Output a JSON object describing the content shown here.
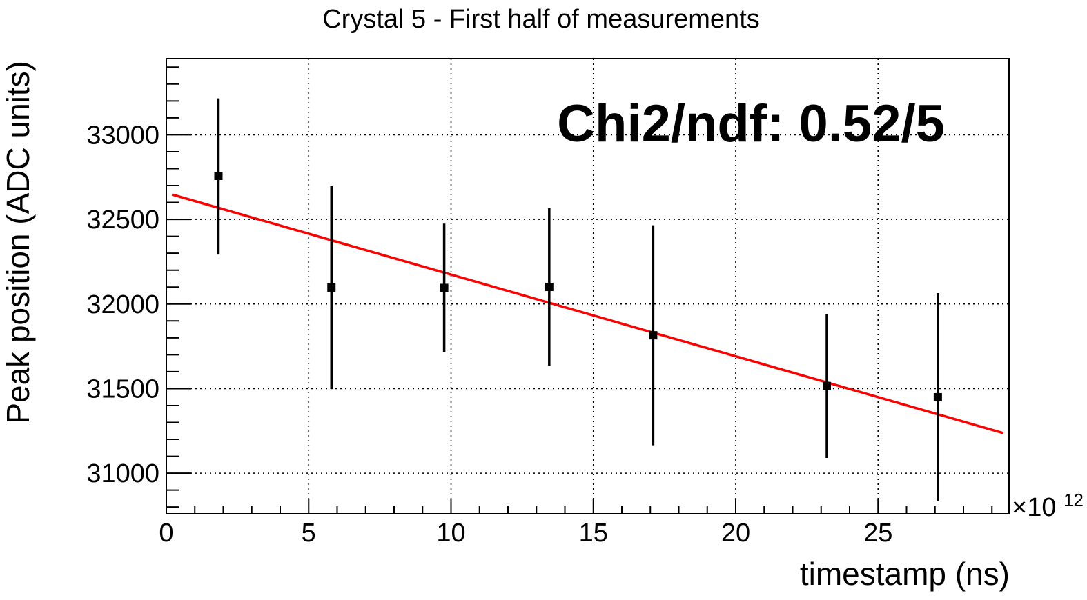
{
  "chart_data": {
    "type": "scatter",
    "title": "Crystal 5 - First half of measurements",
    "xlabel": "timestamp (ns)",
    "ylabel": "Peak position (ADC units)",
    "x_exponent_label": "×10",
    "x_exponent_power": "12",
    "xlim": [
      0,
      29.6
    ],
    "ylim": [
      30760,
      33450
    ],
    "xticks": [
      0,
      5,
      10,
      15,
      20,
      25
    ],
    "xtick_labels": [
      "0",
      "5",
      "10",
      "15",
      "20",
      "25"
    ],
    "yticks": [
      31000,
      31500,
      32000,
      32500,
      33000
    ],
    "ytick_labels": [
      "31000",
      "31500",
      "32000",
      "32500",
      "33000"
    ],
    "grid": true,
    "annotation": "Chi2/ndf: 0.52/5",
    "series": [
      {
        "name": "Peak position",
        "x": [
          1.83,
          5.8,
          9.76,
          13.45,
          17.1,
          23.2,
          27.1
        ],
        "y": [
          32757,
          32097,
          32095,
          32101,
          31815,
          31515,
          31449
        ],
        "yerr_low": [
          465,
          600,
          380,
          465,
          650,
          425,
          615
        ],
        "yerr_high": [
          458,
          600,
          380,
          465,
          650,
          425,
          615
        ],
        "color": "#000000"
      }
    ],
    "fit": {
      "name": "linear fit",
      "x": [
        0.2,
        29.4
      ],
      "y": [
        32647,
        31237
      ],
      "color": "#ff0000"
    }
  }
}
